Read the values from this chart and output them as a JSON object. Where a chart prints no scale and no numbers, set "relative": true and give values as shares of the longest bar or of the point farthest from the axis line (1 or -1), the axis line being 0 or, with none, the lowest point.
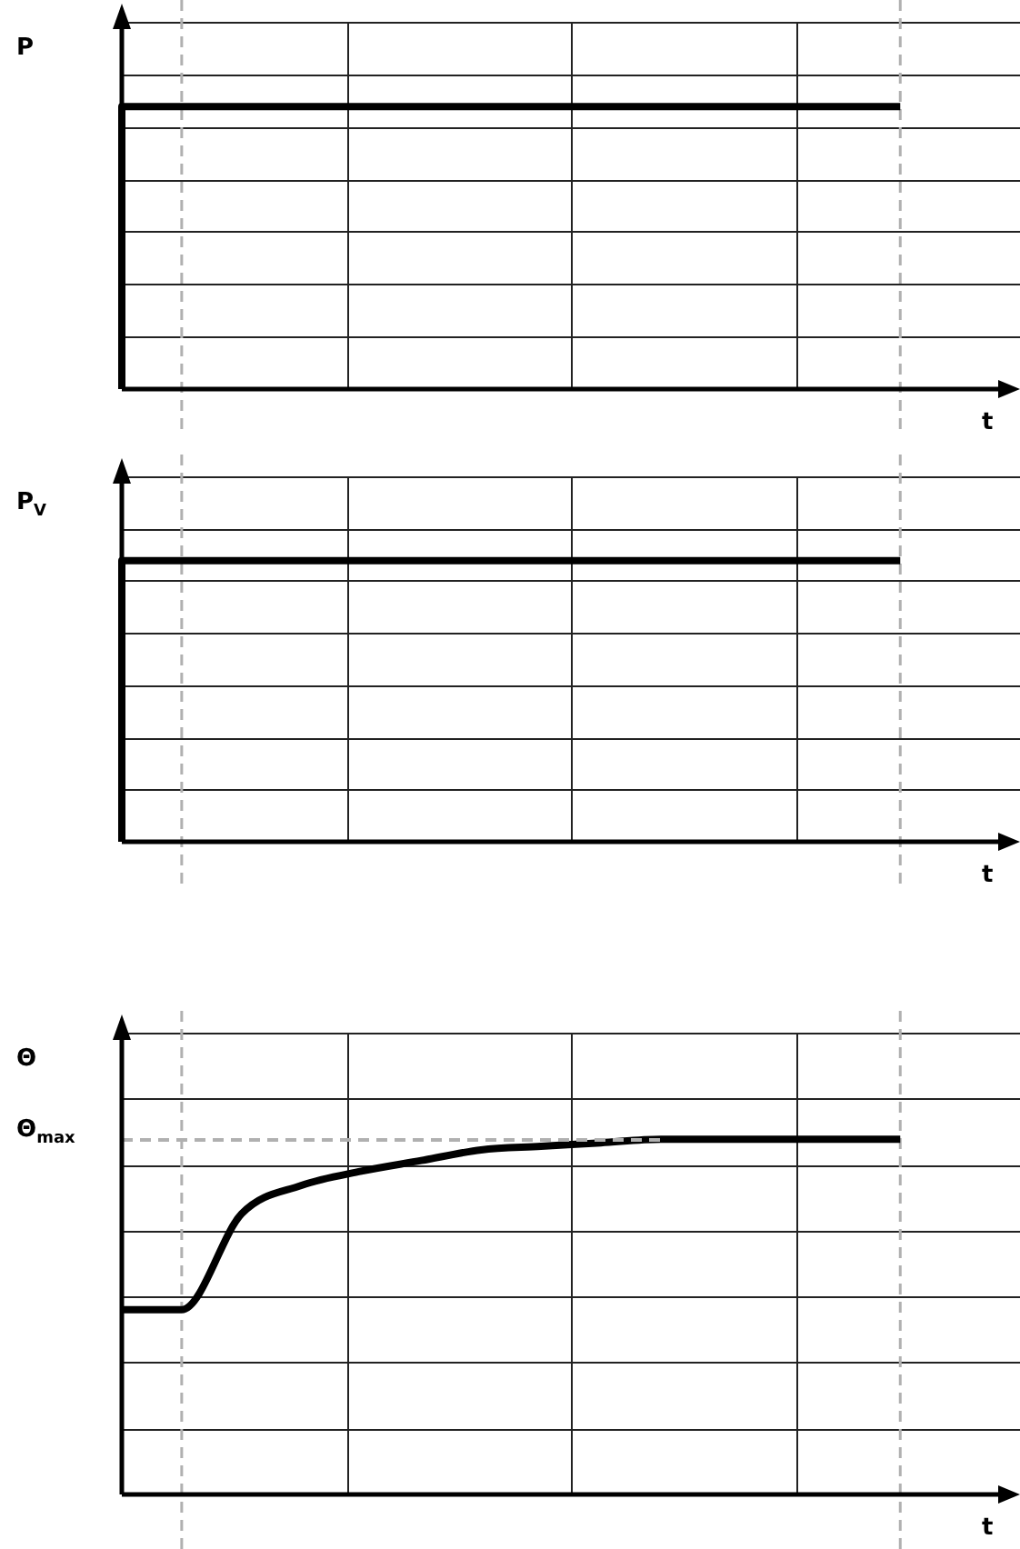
{
  "chart_data": [
    {
      "type": "step",
      "ylabel": "P",
      "xlabel": "t",
      "relative": true,
      "grid": true,
      "legend": false,
      "categories": [
        null,
        null,
        null,
        null,
        null,
        null,
        null,
        null,
        null,
        null,
        null,
        null,
        null,
        null,
        null,
        null
      ],
      "series": [
        {
          "color": "#000000",
          "values": [
            0,
            1,
            1,
            1,
            1,
            1,
            1,
            1,
            1,
            1,
            1,
            1,
            1,
            1,
            null,
            null
          ]
        }
      ]
    },
    {
      "type": "step",
      "ylabel": "P$_{V}$",
      "xlabel": "t",
      "relative": true,
      "grid": true,
      "legend": false,
      "categories": [
        null,
        null,
        null,
        null,
        null,
        null,
        null,
        null,
        null,
        null,
        null,
        null,
        null,
        null,
        null,
        null
      ],
      "series": [
        {
          "color": "#000000",
          "values": [
            0,
            1,
            1,
            1,
            1,
            1,
            1,
            1,
            1,
            1,
            1,
            1,
            1,
            1,
            null,
            null
          ]
        }
      ]
    },
    {
      "type": "line",
      "ylabel": "Θ",
      "xlabel": "t",
      "relative": true,
      "grid": true,
      "legend": false,
      "categories": [
        null,
        null,
        null,
        null,
        null,
        null,
        null,
        null,
        null,
        null,
        null,
        null,
        null,
        null,
        null,
        null
      ],
      "series": [
        {
          "color": "#000000",
          "values": [
            0.52,
            0.52,
            0.79,
            0.87,
            0.91,
            0.94,
            0.97,
            0.98,
            0.99,
            1,
            1,
            1,
            1,
            1,
            null,
            null
          ]
        }
      ],
      "ref_lines": [
        {
          "axis": "y",
          "value": 1,
          "label": "Θ$_{max}$",
          "color": "#b0b0b0",
          "line_style": "dashed"
        }
      ]
    }
  ]
}
